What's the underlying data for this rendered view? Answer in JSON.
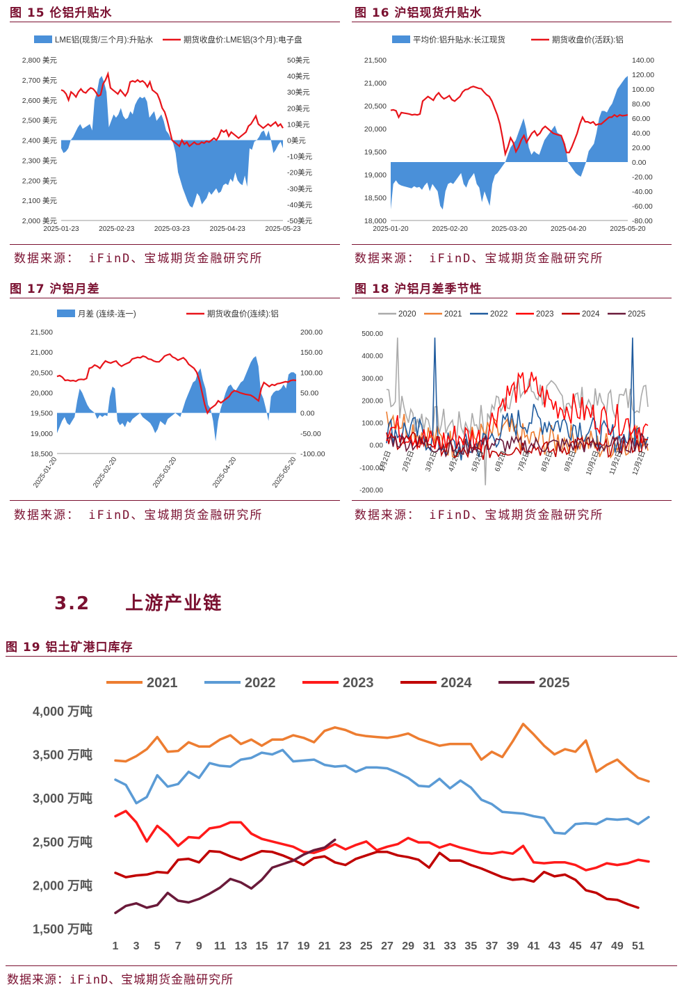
{
  "figures": {
    "f15": {
      "title": "图 15 伦铝升贴水",
      "source": "数据来源： iFinD、宝城期货金融研究所"
    },
    "f16": {
      "title": "图 16 沪铝现货升贴水",
      "source": "数据来源： iFinD、宝城期货金融研究所"
    },
    "f17": {
      "title": "图 17 沪铝月差",
      "source": "数据来源： iFinD、宝城期货金融研究所"
    },
    "f18": {
      "title": "图 18 沪铝月差季节性",
      "source": "数据来源： iFinD、宝城期货金融研究所"
    },
    "f19": {
      "title": "图 19 铝土矿港口库存",
      "source": "数据来源：iFinD、宝城期货金融研究所"
    }
  },
  "section": {
    "number": "3.2",
    "title": "上游产业链"
  },
  "colors": {
    "area": "#4a90d9",
    "line": "#e8141a",
    "brand": "#7a1030"
  },
  "chart_data": [
    {
      "id": "f15",
      "type": "area+line",
      "legend": [
        "LME铝(现货/三个月):升贴水",
        "期货收盘价:LME铝(3个月):电子盘"
      ],
      "left_ticks": [
        "2,800 美元",
        "2,700 美元",
        "2,600 美元",
        "2,500 美元",
        "2,400 美元",
        "2,300 美元",
        "2,200 美元",
        "2,100 美元",
        "2,000 美元"
      ],
      "right_ticks": [
        "50美元",
        "40美元",
        "30美元",
        "20美元",
        "10美元",
        "0美元",
        "-10美元",
        "-20美元",
        "-30美元",
        "-40美元",
        "-50美元"
      ],
      "x_labels": [
        "2025-01-23",
        "2025-02-23",
        "2025-03-23",
        "2025-04-23",
        "2025-05-23"
      ],
      "ylim_left": [
        2000,
        2800
      ],
      "ylim_right": [
        -50,
        50
      ],
      "spread": [
        -5,
        -8,
        -7,
        -5,
        0,
        2,
        5,
        8,
        10,
        7,
        8,
        9,
        10,
        6,
        25,
        30,
        38,
        40,
        36,
        30,
        8,
        12,
        16,
        14,
        16,
        20,
        15,
        13,
        14,
        18,
        16,
        22,
        25,
        27,
        26,
        27,
        24,
        14,
        16,
        18,
        12,
        14,
        16,
        12,
        6,
        4,
        1,
        -2,
        -8,
        -20,
        -25,
        -30,
        -34,
        -38,
        -41,
        -42,
        -38,
        -33,
        -35,
        -40,
        -38,
        -36,
        -32,
        -34,
        -32,
        -30,
        -33,
        -32,
        -28,
        -27,
        -28,
        -24,
        -26,
        -20,
        -25,
        -27,
        -28,
        -22,
        -29,
        -5,
        -6,
        -1,
        0,
        2,
        5,
        6,
        2,
        6,
        0,
        -8,
        -6,
        -3,
        -1,
        -5
      ],
      "price": [
        2650,
        2645,
        2630,
        2600,
        2640,
        2630,
        2615,
        2640,
        2655,
        2640,
        2635,
        2650,
        2660,
        2655,
        2640,
        2620,
        2625,
        2680,
        2700,
        2730,
        2660,
        2650,
        2640,
        2630,
        2650,
        2635,
        2620,
        2640,
        2690,
        2695,
        2690,
        2700,
        2690,
        2695,
        2685,
        2665,
        2690,
        2650,
        2640,
        2630,
        2600,
        2560,
        2540,
        2500,
        2450,
        2400,
        2390,
        2380,
        2370,
        2400,
        2380,
        2390,
        2370,
        2380,
        2390,
        2380,
        2380,
        2390,
        2385,
        2395,
        2390,
        2400,
        2410,
        2400,
        2420,
        2450,
        2440,
        2450,
        2420,
        2440,
        2430,
        2420,
        2410,
        2420,
        2430,
        2440,
        2470,
        2480,
        2500,
        2520,
        2480,
        2470,
        2460,
        2470,
        2480,
        2470,
        2480,
        2490,
        2470,
        2480,
        2460
      ]
    },
    {
      "id": "f16",
      "type": "area+line",
      "legend": [
        "平均价:铝升贴水:长江现货",
        "期货收盘价(活跃):铝"
      ],
      "left_ticks": [
        "21,500",
        "21,000",
        "20,500",
        "20,000",
        "19,500",
        "19,000",
        "18,500",
        "18,000"
      ],
      "right_ticks": [
        "140.00",
        "120.00",
        "100.00",
        "80.00",
        "60.00",
        "40.00",
        "20.00",
        "0.00",
        "-20.00",
        "-40.00",
        "-60.00",
        "-80.00"
      ],
      "x_labels": [
        "2025-01-20",
        "2025-02-20",
        "2025-03-20",
        "2025-04-20",
        "2025-05-20"
      ],
      "ylim_left": [
        18000,
        21500
      ],
      "ylim_right": [
        -80,
        140
      ],
      "spread": [
        -65,
        -30,
        -25,
        -30,
        -32,
        -33,
        -34,
        -35,
        -36,
        -33,
        -35,
        -34,
        -38,
        -32,
        -28,
        -40,
        -30,
        -35,
        -40,
        -60,
        -65,
        -40,
        -30,
        -28,
        -30,
        -25,
        -20,
        -15,
        -30,
        -35,
        -25,
        -20,
        -15,
        -30,
        -35,
        -55,
        -40,
        -50,
        -60,
        -30,
        -18,
        -15,
        -10,
        -5,
        0,
        10,
        20,
        25,
        30,
        40,
        50,
        60,
        45,
        20,
        10,
        15,
        12,
        10,
        20,
        30,
        35,
        40,
        45,
        50,
        40,
        38,
        30,
        25,
        0,
        -5,
        -10,
        -15,
        -18,
        -20,
        -10,
        0,
        15,
        20,
        25,
        40,
        60,
        70,
        70,
        68,
        75,
        80,
        90,
        100,
        105,
        110,
        115,
        118
      ],
      "price": [
        20400,
        20410,
        20390,
        20250,
        20350,
        20340,
        20330,
        20320,
        20300,
        20310,
        20300,
        20320,
        20600,
        20650,
        20700,
        20660,
        20620,
        20720,
        20780,
        20700,
        20650,
        20680,
        20720,
        20630,
        20600,
        20650,
        20700,
        20800,
        20850,
        20860,
        20900,
        20920,
        20900,
        20880,
        20870,
        20800,
        20740,
        20700,
        20600,
        20450,
        20300,
        20100,
        19800,
        19450,
        19600,
        19800,
        19700,
        19500,
        19600,
        19750,
        19850,
        19700,
        19800,
        19900,
        19950,
        19850,
        19900,
        20000,
        20050,
        20000,
        19950,
        19900,
        19880,
        19860,
        19850,
        19700,
        19480,
        19480,
        19600,
        19750,
        19900,
        20100,
        20250,
        20150,
        20150,
        20120,
        20150,
        20080,
        20100,
        20100,
        20150,
        20200,
        20250,
        20250,
        20300,
        20260,
        20300,
        20280,
        20290,
        20300
      ]
    },
    {
      "id": "f17",
      "type": "area+line",
      "legend": [
        "月差 (连续-连一)",
        "期货收盘价(连续):铝"
      ],
      "left_ticks": [
        "21,500",
        "21,000",
        "20,500",
        "20,000",
        "19,500",
        "19,000",
        "18,500"
      ],
      "right_ticks": [
        "200.00",
        "150.00",
        "100.00",
        "50.00",
        "0.00",
        "-50.00",
        "-100.00"
      ],
      "x_labels": [
        "2025-01-20",
        "2025-02-20",
        "2025-03-20",
        "2025-04-20",
        "2025-05-20"
      ],
      "ylim_left": [
        18500,
        21500
      ],
      "ylim_right": [
        -100,
        200
      ],
      "spread": [
        -50,
        -35,
        -20,
        -10,
        -25,
        -30,
        -20,
        -10,
        30,
        60,
        50,
        35,
        20,
        10,
        5,
        0,
        -15,
        -5,
        -10,
        -5,
        -8,
        40,
        65,
        60,
        -20,
        -30,
        -25,
        -35,
        -20,
        -25,
        -15,
        -10,
        -5,
        0,
        -10,
        -15,
        -20,
        -25,
        -35,
        -50,
        -40,
        -20,
        -25,
        -30,
        -15,
        -10,
        -5,
        0,
        -5,
        -10,
        10,
        30,
        45,
        60,
        75,
        80,
        100,
        110,
        80,
        60,
        20,
        10,
        -20,
        -70,
        -20,
        10,
        30,
        50,
        65,
        70,
        60,
        55,
        65,
        75,
        80,
        95,
        110,
        125,
        135,
        140,
        115,
        50,
        35,
        10,
        -20,
        40,
        50,
        55,
        55,
        60,
        70,
        60,
        95,
        100,
        100,
        95
      ],
      "price": [
        20400,
        20420,
        20380,
        20300,
        20310,
        20290,
        20300,
        20280,
        20320,
        20330,
        20320,
        20350,
        20600,
        20620,
        20680,
        20650,
        20600,
        20700,
        20780,
        20750,
        20730,
        20760,
        20780,
        20700,
        20650,
        20690,
        20720,
        20750,
        20830,
        20850,
        20870,
        20860,
        20900,
        20880,
        20830,
        20820,
        20780,
        20760,
        20760,
        20820,
        20900,
        20930,
        20950,
        20880,
        20850,
        20800,
        20830,
        20860,
        20800,
        20700,
        20650,
        20600,
        20500,
        20300,
        20000,
        19700,
        19500,
        19600,
        19650,
        19700,
        19800,
        19750,
        19800,
        19850,
        19900,
        20000,
        20050,
        20030,
        20000,
        19980,
        19960,
        19950,
        19940,
        19900,
        19850,
        19800,
        20100,
        20250,
        20200,
        20150,
        20200,
        20180,
        20220,
        20230,
        20250,
        20270,
        20260,
        20300,
        20310,
        20300
      ]
    },
    {
      "id": "f18",
      "type": "line",
      "legend": [
        "2020",
        "2021",
        "2022",
        "2023",
        "2024",
        "2025"
      ],
      "series_colors": [
        "#aaaaaa",
        "#ed7d31",
        "#1f5b9e",
        "#ff0000",
        "#c00000",
        "#6a1a3a"
      ],
      "left_ticks": [
        "500.00",
        "400.00",
        "300.00",
        "200.00",
        "100.00",
        "0.00",
        "-100.00",
        "-200.00"
      ],
      "ylim": [
        -200,
        500
      ],
      "x_labels": [
        "1月2日",
        "2月2日",
        "3月2日",
        "4月2日",
        "5月2日",
        "6月2日",
        "7月2日",
        "8月2日",
        "9月2日",
        "10月2日",
        "11月2日",
        "12月2日"
      ]
    },
    {
      "id": "f19",
      "type": "line",
      "legend": [
        "2021",
        "2022",
        "2023",
        "2024",
        "2025"
      ],
      "series_colors": [
        "#ed7d31",
        "#5b9bd5",
        "#ff1a1a",
        "#c00000",
        "#6a1a3a"
      ],
      "y_ticks": [
        "4,000 万吨",
        "3,500 万吨",
        "3,000 万吨",
        "2,500 万吨",
        "2,000 万吨",
        "1,500 万吨"
      ],
      "ylim": [
        1500,
        4000
      ],
      "x_labels": [
        "1",
        "3",
        "5",
        "7",
        "9",
        "11",
        "13",
        "15",
        "17",
        "19",
        "21",
        "23",
        "25",
        "27",
        "29",
        "31",
        "33",
        "35",
        "37",
        "39",
        "41",
        "43",
        "45",
        "47",
        "49",
        "51"
      ],
      "series": [
        {
          "name": "2021",
          "values": [
            3430,
            3420,
            3480,
            3560,
            3700,
            3530,
            3540,
            3640,
            3590,
            3590,
            3670,
            3720,
            3620,
            3670,
            3600,
            3670,
            3670,
            3720,
            3690,
            3640,
            3770,
            3810,
            3780,
            3730,
            3710,
            3700,
            3690,
            3710,
            3740,
            3680,
            3640,
            3600,
            3620,
            3620,
            3620,
            3440,
            3530,
            3470,
            3650,
            3850,
            3730,
            3600,
            3500,
            3560,
            3530,
            3660,
            3300,
            3380,
            3440,
            3330,
            3230,
            3190
          ]
        },
        {
          "name": "2022",
          "values": [
            3210,
            3150,
            2940,
            3010,
            3260,
            3130,
            3160,
            3300,
            3230,
            3400,
            3370,
            3360,
            3440,
            3460,
            3520,
            3500,
            3550,
            3420,
            3430,
            3440,
            3380,
            3360,
            3370,
            3300,
            3350,
            3350,
            3340,
            3290,
            3230,
            3140,
            3130,
            3220,
            3110,
            3200,
            3120,
            2980,
            2930,
            2840,
            2830,
            2820,
            2790,
            2770,
            2600,
            2590,
            2700,
            2710,
            2700,
            2760,
            2750,
            2760,
            2700,
            2780
          ]
        },
        {
          "name": "2023",
          "values": [
            2790,
            2850,
            2720,
            2500,
            2680,
            2580,
            2450,
            2550,
            2540,
            2650,
            2670,
            2720,
            2720,
            2590,
            2530,
            2500,
            2470,
            2440,
            2380,
            2370,
            2410,
            2470,
            2410,
            2460,
            2500,
            2400,
            2440,
            2470,
            2540,
            2490,
            2490,
            2430,
            2470,
            2430,
            2400,
            2370,
            2360,
            2380,
            2360,
            2450,
            2260,
            2250,
            2260,
            2260,
            2230,
            2170,
            2200,
            2250,
            2230,
            2250,
            2290,
            2270
          ]
        },
        {
          "name": "2024",
          "values": [
            2140,
            2090,
            2110,
            2120,
            2150,
            2140,
            2290,
            2300,
            2260,
            2390,
            2380,
            2330,
            2290,
            2340,
            2390,
            2380,
            2340,
            2290,
            2230,
            2310,
            2330,
            2260,
            2230,
            2300,
            2340,
            2380,
            2380,
            2340,
            2320,
            2290,
            2200,
            2370,
            2280,
            2280,
            2230,
            2190,
            2140,
            2090,
            2060,
            2070,
            2040,
            2150,
            2100,
            2120,
            2060,
            1940,
            1910,
            1840,
            1830,
            1780,
            1740
          ]
        },
        {
          "name": "2025",
          "values": [
            1680,
            1760,
            1790,
            1740,
            1770,
            1910,
            1820,
            1800,
            1840,
            1900,
            1970,
            2070,
            2030,
            1960,
            2060,
            2200,
            2240,
            2280,
            2350,
            2400,
            2430,
            2520
          ]
        }
      ]
    }
  ]
}
